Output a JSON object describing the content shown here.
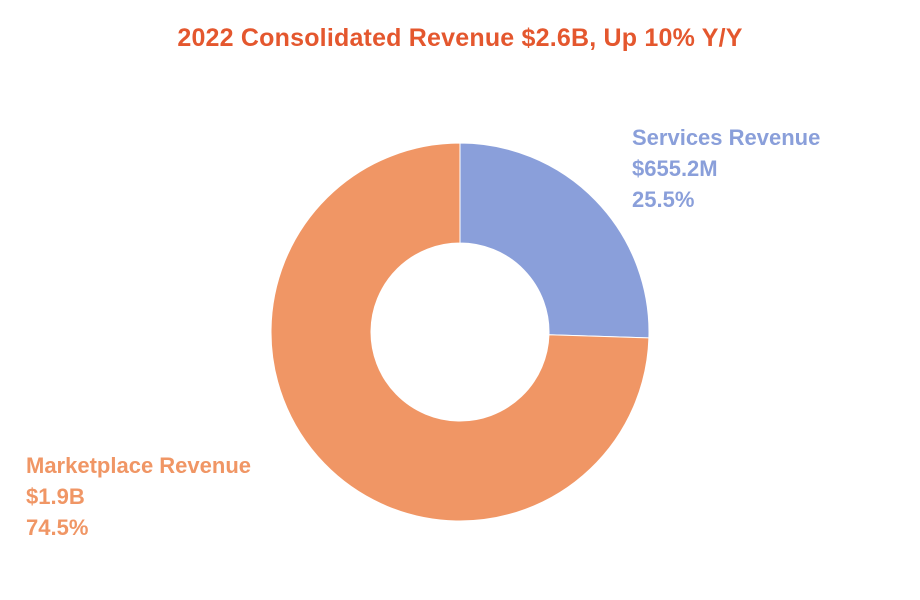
{
  "chart_data": {
    "type": "pie",
    "style": "donut",
    "title": "2022 Consolidated Revenue $2.6B, Up 10% Y/Y",
    "slices": [
      {
        "name": "Services Revenue",
        "value_label": "$655.2M",
        "percent_label": "25.5%",
        "percent": 25.5,
        "color": "#8a9fda"
      },
      {
        "name": "Marketplace Revenue",
        "value_label": "$1.9B",
        "percent_label": "74.5%",
        "percent": 74.5,
        "color": "#f09665"
      }
    ],
    "title_color": "#e4572e",
    "start_angle_deg": 0,
    "direction": "clockwise"
  }
}
